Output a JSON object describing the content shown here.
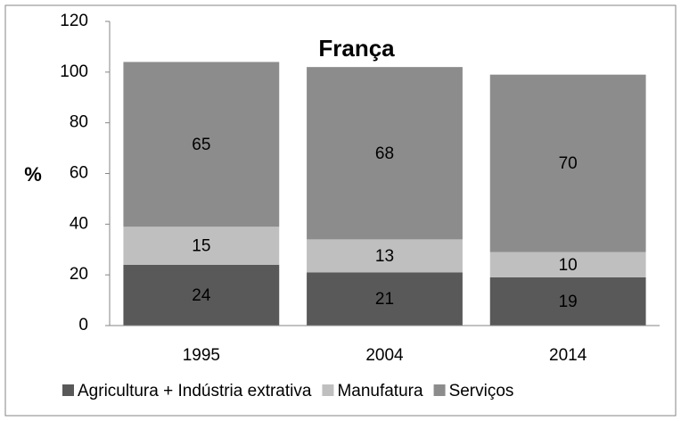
{
  "chart_data": {
    "type": "stacked_bar",
    "title": "França",
    "y_label": "%",
    "categories": [
      "1995",
      "2004",
      "2014"
    ],
    "series": [
      {
        "name": "Agricultura + Indústria extrativa",
        "color": "#595959",
        "values": [
          24,
          21,
          19
        ]
      },
      {
        "name": "Manufatura",
        "color": "#bfbfbf",
        "values": [
          15,
          13,
          10
        ]
      },
      {
        "name": "Serviços",
        "color": "#8c8c8c",
        "values": [
          65,
          68,
          70
        ]
      }
    ],
    "ylim": [
      0,
      120
    ],
    "yticks": [
      0,
      20,
      40,
      60,
      80,
      100,
      120
    ],
    "grid": false,
    "legend": "bottom"
  }
}
